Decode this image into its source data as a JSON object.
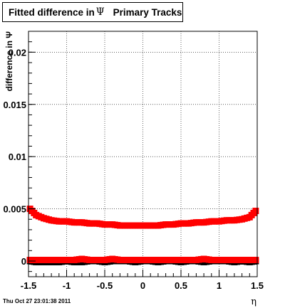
{
  "chart_data": {
    "type": "scatter",
    "title_prefix": "Fitted difference in",
    "title_symbol": "Ψ",
    "title_suffix": "Primary Tracks",
    "xlabel": "η",
    "ylabel": "difference in Ψ",
    "xlim": [
      -1.5,
      1.5
    ],
    "ylim": [
      -0.0015,
      0.022
    ],
    "x_ticks": [
      -1.5,
      -1,
      -0.5,
      0,
      0.5,
      1,
      1.5
    ],
    "x_tick_labels": [
      "-1.5",
      "-1",
      "-0.5",
      "0",
      "0.5",
      "1",
      "1.5"
    ],
    "y_ticks": [
      0,
      0.005,
      0.01,
      0.015,
      0.02
    ],
    "y_tick_labels": [
      "0",
      "0.005",
      "0.01",
      "0.015",
      "0.02"
    ],
    "grid": true,
    "series": [
      {
        "color": "#ff0000",
        "marker": "square",
        "x": [
          -1.48,
          -1.4,
          -1.3,
          -1.2,
          -1.1,
          -1.0,
          -0.9,
          -0.8,
          -0.7,
          -0.6,
          -0.5,
          -0.4,
          -0.3,
          -0.2,
          -0.1,
          0.0,
          0.1,
          0.2,
          0.3,
          0.4,
          0.5,
          0.6,
          0.7,
          0.8,
          0.9,
          1.0,
          1.1,
          1.2,
          1.3,
          1.4,
          1.48
        ],
        "y": [
          0.005,
          0.0044,
          0.0041,
          0.0039,
          0.0038,
          0.0038,
          0.0037,
          0.0037,
          0.0036,
          0.0036,
          0.0035,
          0.0035,
          0.0034,
          0.0034,
          0.0034,
          0.0034,
          0.0034,
          0.0034,
          0.0035,
          0.0035,
          0.0036,
          0.0036,
          0.0037,
          0.0037,
          0.0038,
          0.0038,
          0.0039,
          0.0039,
          0.004,
          0.0042,
          0.0048
        ]
      },
      {
        "color": "#000000",
        "marker": "square",
        "x": [
          -1.48,
          -1.4,
          -1.3,
          -1.2,
          -1.1,
          -1.0,
          -0.9,
          -0.8,
          -0.7,
          -0.6,
          -0.5,
          -0.4,
          -0.3,
          -0.2,
          -0.1,
          0.0,
          0.1,
          0.2,
          0.3,
          0.4,
          0.5,
          0.6,
          0.7,
          0.8,
          0.9,
          1.0,
          1.1,
          1.2,
          1.3,
          1.4,
          1.48
        ],
        "y": [
          0.0,
          -0.0001,
          -0.0001,
          -0.0001,
          -0.0001,
          0.0,
          -0.0001,
          -0.0001,
          0.0,
          0.0,
          -0.0001,
          0.0,
          0.0,
          0.0,
          -0.0001,
          0.0,
          0.0,
          -0.0001,
          0.0,
          0.0,
          -0.0001,
          0.0,
          0.0,
          -0.0001,
          0.0,
          0.0,
          0.0,
          -0.0001,
          0.0,
          -0.0001,
          0.0
        ]
      },
      {
        "color": "#ff0000",
        "marker": "square",
        "x": [
          -1.48,
          -1.4,
          -1.3,
          -1.2,
          -1.1,
          -1.0,
          -0.9,
          -0.8,
          -0.7,
          -0.6,
          -0.5,
          -0.4,
          -0.3,
          -0.2,
          -0.1,
          0.0,
          0.1,
          0.2,
          0.3,
          0.4,
          0.5,
          0.6,
          0.7,
          0.8,
          0.9,
          1.0,
          1.1,
          1.2,
          1.3,
          1.4,
          1.48
        ],
        "y": [
          0.0001,
          0.0001,
          0.0001,
          0.0001,
          0.0001,
          0.0001,
          0.0001,
          0.0002,
          0.0001,
          0.0001,
          0.0001,
          0.0002,
          0.0001,
          0.0001,
          0.0001,
          0.0001,
          0.0001,
          0.0001,
          0.0001,
          0.0001,
          0.0001,
          0.0001,
          0.0001,
          0.0002,
          0.0001,
          0.0001,
          0.0001,
          0.0001,
          0.0001,
          0.0001,
          0.0001
        ]
      }
    ]
  },
  "footer": {
    "date": "Thu Oct 27 23:01:38 2011"
  }
}
